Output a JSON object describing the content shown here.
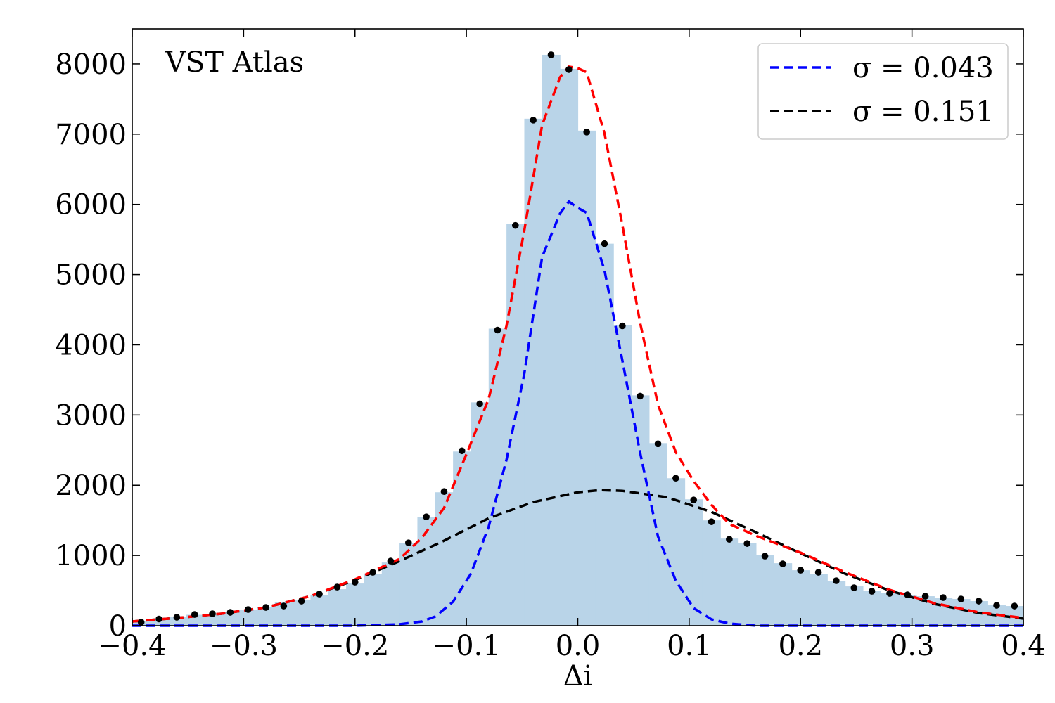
{
  "chart_data": {
    "type": "bar",
    "title": "",
    "annotation": "VST Atlas",
    "xlabel": "Δi",
    "ylabel": "",
    "xlim": [
      -0.4,
      0.4
    ],
    "ylim": [
      0,
      8500
    ],
    "xticks": [
      -0.4,
      -0.3,
      -0.2,
      -0.1,
      0.0,
      0.1,
      0.2,
      0.3,
      0.4
    ],
    "xtick_labels": [
      "−0.4",
      "−0.3",
      "−0.2",
      "−0.1",
      "0.0",
      "0.1",
      "0.2",
      "0.3",
      "0.4"
    ],
    "yticks": [
      0,
      1000,
      2000,
      3000,
      4000,
      5000,
      6000,
      7000,
      8000
    ],
    "ytick_labels": [
      "0",
      "1000",
      "2000",
      "3000",
      "4000",
      "5000",
      "6000",
      "7000",
      "8000"
    ],
    "grid": false,
    "legend_position": "top-right",
    "histogram": {
      "color": "#b9d4e8",
      "bin_width": 0.016,
      "bin_centers": [
        -0.392,
        -0.376,
        -0.36,
        -0.344,
        -0.328,
        -0.312,
        -0.296,
        -0.28,
        -0.264,
        -0.248,
        -0.232,
        -0.216,
        -0.2,
        -0.184,
        -0.168,
        -0.152,
        -0.136,
        -0.12,
        -0.104,
        -0.088,
        -0.072,
        -0.056,
        -0.04,
        -0.024,
        -0.008,
        0.008,
        0.024,
        0.04,
        0.056,
        0.072,
        0.088,
        0.104,
        0.12,
        0.136,
        0.152,
        0.168,
        0.184,
        0.2,
        0.216,
        0.232,
        0.248,
        0.264,
        0.28,
        0.296,
        0.312,
        0.328,
        0.344,
        0.36,
        0.376,
        0.392
      ],
      "counts": [
        60,
        95,
        125,
        155,
        170,
        195,
        230,
        270,
        330,
        370,
        440,
        520,
        600,
        740,
        900,
        1180,
        1550,
        1900,
        2480,
        3180,
        4230,
        5720,
        7220,
        8130,
        7930,
        7050,
        5440,
        4280,
        3280,
        2600,
        2100,
        1800,
        1500,
        1240,
        1180,
        1010,
        890,
        790,
        740,
        640,
        560,
        500,
        470,
        440,
        420,
        400,
        380,
        350,
        290,
        280
      ]
    },
    "points": {
      "color": "#000000",
      "x": [
        -0.392,
        -0.376,
        -0.36,
        -0.344,
        -0.328,
        -0.312,
        -0.296,
        -0.28,
        -0.264,
        -0.248,
        -0.232,
        -0.216,
        -0.2,
        -0.184,
        -0.168,
        -0.152,
        -0.136,
        -0.12,
        -0.104,
        -0.088,
        -0.072,
        -0.056,
        -0.04,
        -0.024,
        -0.008,
        0.008,
        0.024,
        0.04,
        0.056,
        0.072,
        0.088,
        0.104,
        0.12,
        0.136,
        0.152,
        0.168,
        0.184,
        0.2,
        0.216,
        0.232,
        0.248,
        0.264,
        0.28,
        0.296,
        0.312,
        0.328,
        0.344,
        0.36,
        0.376,
        0.392
      ],
      "y": [
        50,
        95,
        120,
        160,
        170,
        190,
        230,
        260,
        280,
        350,
        450,
        550,
        620,
        760,
        920,
        1180,
        1550,
        1910,
        2490,
        3160,
        4210,
        5700,
        7200,
        8130,
        7920,
        7030,
        5440,
        4270,
        3270,
        2590,
        2100,
        1790,
        1480,
        1230,
        1170,
        990,
        880,
        790,
        760,
        640,
        540,
        490,
        460,
        440,
        420,
        400,
        380,
        350,
        290,
        280
      ]
    },
    "series": [
      {
        "name": "σ = 0.043",
        "color": "#0000ff",
        "style": "dashed",
        "x": [
          -0.4,
          -0.2,
          -0.16,
          -0.14,
          -0.128,
          -0.112,
          -0.096,
          -0.08,
          -0.064,
          -0.048,
          -0.032,
          -0.016,
          -0.008,
          0.0,
          0.008,
          0.024,
          0.04,
          0.056,
          0.072,
          0.088,
          0.104,
          0.12,
          0.136,
          0.16,
          0.2,
          0.4
        ],
        "y": [
          0,
          0,
          20,
          60,
          130,
          340,
          740,
          1410,
          2360,
          3590,
          5250,
          5870,
          6040,
          5950,
          5880,
          5060,
          3780,
          2460,
          1270,
          640,
          250,
          90,
          30,
          0,
          0,
          0
        ]
      },
      {
        "name": "σ = 0.151",
        "color": "#000000",
        "style": "dashed",
        "x": [
          -0.4,
          -0.36,
          -0.32,
          -0.28,
          -0.24,
          -0.2,
          -0.16,
          -0.12,
          -0.08,
          -0.04,
          0.0,
          0.02,
          0.04,
          0.08,
          0.12,
          0.16,
          0.2,
          0.24,
          0.28,
          0.32,
          0.36,
          0.4
        ],
        "y": [
          60,
          110,
          170,
          260,
          420,
          650,
          920,
          1210,
          1530,
          1760,
          1900,
          1930,
          1920,
          1830,
          1620,
          1330,
          1030,
          740,
          500,
          310,
          180,
          100
        ]
      },
      {
        "name": "",
        "color": "#ff0000",
        "style": "dashed",
        "x": [
          -0.4,
          -0.36,
          -0.32,
          -0.28,
          -0.24,
          -0.2,
          -0.16,
          -0.14,
          -0.12,
          -0.1,
          -0.08,
          -0.064,
          -0.048,
          -0.032,
          -0.016,
          -0.008,
          0.0,
          0.008,
          0.024,
          0.04,
          0.056,
          0.072,
          0.088,
          0.104,
          0.12,
          0.136,
          0.16,
          0.2,
          0.24,
          0.28,
          0.32,
          0.36,
          0.4
        ],
        "y": [
          60,
          110,
          170,
          260,
          420,
          660,
          950,
          1250,
          1680,
          2440,
          3230,
          4270,
          5630,
          7130,
          7810,
          7960,
          7940,
          7880,
          7010,
          5710,
          4310,
          3150,
          2470,
          2060,
          1720,
          1450,
          1280,
          1040,
          760,
          510,
          320,
          190,
          110
        ]
      }
    ]
  }
}
